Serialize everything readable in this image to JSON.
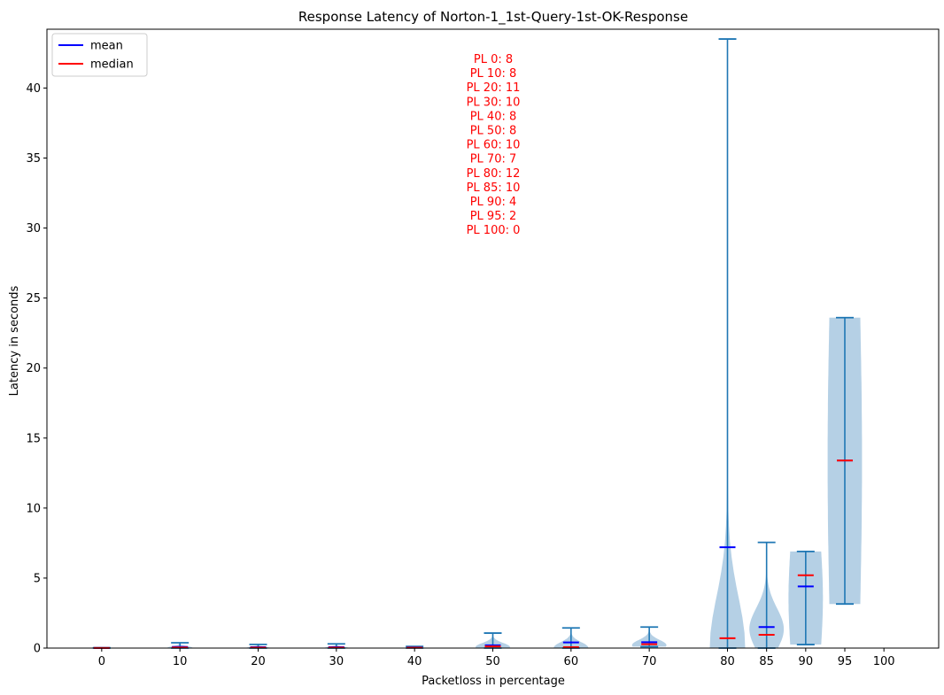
{
  "chart_data": {
    "type": "violin",
    "title": "Response Latency of Norton-1_1st-Query-1st-OK-Response",
    "xlabel": "Packetloss in percentage",
    "ylabel": "Latency in seconds",
    "ylim": [
      0,
      44.2
    ],
    "yticks": [
      0,
      5,
      10,
      15,
      20,
      25,
      30,
      35,
      40
    ],
    "categories": [
      "0",
      "10",
      "20",
      "30",
      "40",
      "50",
      "60",
      "70",
      "80",
      "85",
      "90",
      "95",
      "100"
    ],
    "x": [
      0,
      10,
      20,
      30,
      40,
      50,
      60,
      70,
      80,
      85,
      90,
      95,
      100
    ],
    "legend": {
      "position": "upper-left",
      "entries": [
        {
          "label": "mean",
          "color": "#0000ff"
        },
        {
          "label": "median",
          "color": "#ff0000"
        }
      ]
    },
    "colors": {
      "body": "#b5d0e5",
      "stat_line": "#1f77b4",
      "mean": "#0000ff",
      "median": "#ff0000",
      "annotation": "#ff0000"
    },
    "violins": [
      {
        "x": 0,
        "min": 0.0,
        "max": 0.02,
        "mean": 0.01,
        "median": 0.01,
        "width": 0.0
      },
      {
        "x": 10,
        "min": 0.0,
        "max": 0.38,
        "mean": 0.08,
        "median": 0.04,
        "width": 1.6
      },
      {
        "x": 20,
        "min": 0.0,
        "max": 0.26,
        "mean": 0.06,
        "median": 0.03,
        "width": 1.5
      },
      {
        "x": 30,
        "min": 0.0,
        "max": 0.3,
        "mean": 0.06,
        "median": 0.03,
        "width": 1.5
      },
      {
        "x": 40,
        "min": 0.0,
        "max": 0.12,
        "mean": 0.04,
        "median": 0.02,
        "width": 1.2
      },
      {
        "x": 50,
        "min": 0.0,
        "max": 1.07,
        "mean": 0.2,
        "median": 0.12,
        "width": 2.2
      },
      {
        "x": 60,
        "min": 0.0,
        "max": 1.44,
        "mean": 0.4,
        "median": 0.06,
        "width": 2.2
      },
      {
        "x": 70,
        "min": 0.1,
        "max": 1.5,
        "mean": 0.42,
        "median": 0.28,
        "width": 2.2
      },
      {
        "x": 80,
        "min": 0.0,
        "max": 43.5,
        "mean": 7.2,
        "median": 0.7,
        "width": 2.2
      },
      {
        "x": 85,
        "min": 0.0,
        "max": 7.55,
        "mean": 1.5,
        "median": 0.95,
        "width": 2.2
      },
      {
        "x": 90,
        "min": 0.25,
        "max": 6.9,
        "mean": 4.4,
        "median": 5.2,
        "width": 2.2
      },
      {
        "x": 95,
        "min": 3.15,
        "max": 23.6,
        "mean": 13.4,
        "median": 13.4,
        "width": 2.2
      }
    ],
    "annotations": [
      "PL 0: 8",
      "PL 10: 8",
      "PL 20: 11",
      "PL 30: 10",
      "PL 40: 8",
      "PL 50: 8",
      "PL 60: 10",
      "PL 70: 7",
      "PL 80: 12",
      "PL 85: 10",
      "PL 90: 4",
      "PL 95: 2",
      "PL 100: 0"
    ]
  }
}
